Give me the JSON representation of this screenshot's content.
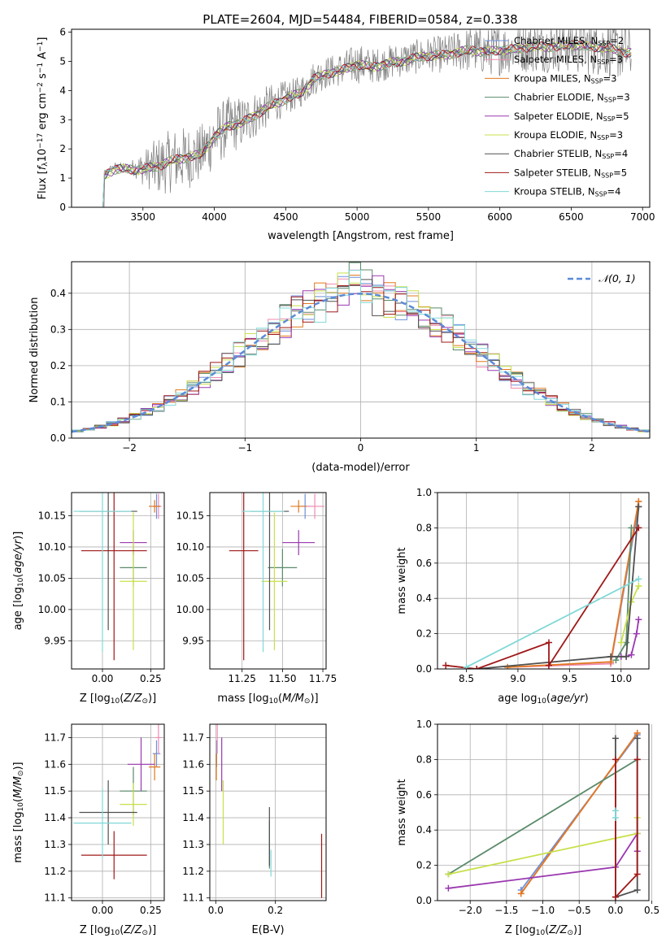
{
  "title": "PLATE=2604, MJD=54484, FIBERID=0584, z=0.338",
  "series_colors": {
    "Chabrier MILES": "#6d8fd8",
    "Salpeter MILES": "#f08ab0",
    "Kroupa MILES": "#e0781e",
    "Chabrier ELODIE": "#5a8a6a",
    "Salpeter ELODIE": "#9a38b0",
    "Kroupa ELODIE": "#c8e04a",
    "Chabrier STELIB": "#505050",
    "Salpeter STELIB": "#a01818",
    "Kroupa STELIB": "#80d8d8",
    "data": "#808080",
    "normal": "#5b8bd8"
  },
  "chart_data": [
    {
      "id": "spectrum",
      "type": "line",
      "title": "PLATE=2604, MJD=54484, FIBERID=0584, z=0.338",
      "xlabel": "wavelength [Angstrom, rest frame]",
      "ylabel": "Flux [f_λ 10^-17 erg cm^-2 s^-1 A^-1]",
      "ylabel_parts": [
        "Flux [",
        "f",
        "λ",
        "10",
        "−17",
        " erg cm",
        "−2",
        " s",
        "−1",
        " A",
        "−1",
        "]"
      ],
      "xlim": [
        3000,
        7050
      ],
      "ylim": [
        0,
        6.1
      ],
      "xticks": [
        3500,
        4000,
        4500,
        5000,
        5500,
        6000,
        6500,
        7000
      ],
      "yticks": [
        0,
        1,
        2,
        3,
        4,
        5,
        6
      ],
      "grid": false,
      "legend_position": "top-right",
      "data_envelope": {
        "x": [
          3200,
          3230,
          3300,
          3400,
          3500,
          3600,
          3700,
          3800,
          3900,
          4000,
          4100,
          4200,
          4300,
          4400,
          4500,
          4600,
          4700,
          4800,
          4900,
          5000,
          5100,
          5200,
          5300,
          5400,
          5500,
          5600,
          5700,
          5800,
          5900,
          6000,
          6100,
          6200,
          6300,
          6400,
          6500,
          6600,
          6700,
          6800,
          6900
        ],
        "y": [
          0,
          1.2,
          1.4,
          1.4,
          1.4,
          1.5,
          1.7,
          1.8,
          1.9,
          2.5,
          2.9,
          3.0,
          3.3,
          3.6,
          3.8,
          4.0,
          4.5,
          4.7,
          4.8,
          5.0,
          4.9,
          5.0,
          5.1,
          5.2,
          5.3,
          5.3,
          5.4,
          5.5,
          5.4,
          5.5,
          5.5,
          5.6,
          5.6,
          5.6,
          5.7,
          5.6,
          5.6,
          5.5,
          5.4
        ],
        "noise": [
          0,
          0.1,
          0.15,
          0.15,
          0.6,
          1.0,
          1.1,
          1.1,
          1.0,
          1.1,
          1.0,
          0.9,
          0.8,
          0.7,
          0.6,
          0.55,
          0.6,
          0.55,
          0.6,
          0.7,
          0.6,
          0.6,
          0.6,
          0.6,
          0.6,
          0.65,
          0.7,
          0.8,
          0.8,
          0.9,
          0.8,
          0.9,
          0.9,
          0.9,
          1.0,
          1.0,
          1.0,
          1.0,
          1.0
        ]
      },
      "legend": [
        {
          "key": "Chabrier MILES",
          "label": "Chabrier MILES, N",
          "sub": "SSP",
          "value": "=2"
        },
        {
          "key": "Salpeter MILES",
          "label": "Salpeter MILES, N",
          "sub": "SSP",
          "value": "=3"
        },
        {
          "key": "Kroupa MILES",
          "label": "Kroupa MILES, N",
          "sub": "SSP",
          "value": "=3"
        },
        {
          "key": "Chabrier ELODIE",
          "label": "Chabrier ELODIE, N",
          "sub": "SSP",
          "value": "=3"
        },
        {
          "key": "Salpeter ELODIE",
          "label": "Salpeter ELODIE, N",
          "sub": "SSP",
          "value": "=5"
        },
        {
          "key": "Kroupa ELODIE",
          "label": "Kroupa ELODIE, N",
          "sub": "SSP",
          "value": "=3"
        },
        {
          "key": "Chabrier STELIB",
          "label": "Chabrier STELIB, N",
          "sub": "SSP",
          "value": "=4"
        },
        {
          "key": "Salpeter STELIB",
          "label": "Salpeter STELIB, N",
          "sub": "SSP",
          "value": "=5"
        },
        {
          "key": "Kroupa STELIB",
          "label": "Kroupa STELIB, N",
          "sub": "SSP",
          "value": "=4"
        }
      ]
    },
    {
      "id": "residuals",
      "type": "line",
      "xlabel": "(data-model)/error",
      "ylabel": "Normed distribution",
      "xlim": [
        -2.5,
        2.5
      ],
      "ylim": [
        0,
        0.487
      ],
      "xticks": [
        -2,
        -1,
        0,
        1,
        2
      ],
      "yticks": [
        0.0,
        0.1,
        0.2,
        0.3,
        0.4
      ],
      "grid": true,
      "legend_position": "top-right",
      "legend_label": "𝒩(0, 1)",
      "normal": {
        "mean": 0,
        "sigma": 1
      }
    },
    {
      "id": "age-vs-Z",
      "type": "scatter",
      "xlabel": "Z [log10(Z/Z⊙)]",
      "ylabel": "age [log10(age/yr)]",
      "xlim": [
        -0.16,
        0.32
      ],
      "ylim": [
        9.905,
        10.187
      ],
      "xticks": [
        0.0,
        0.25
      ],
      "xticklabels": [
        "0.00",
        "0.25"
      ],
      "yticks": [
        9.95,
        10.0,
        10.05,
        10.1,
        10.15
      ],
      "yticklabels": [
        "9.95",
        "10.00",
        "10.05",
        "10.10",
        "10.15"
      ],
      "grid": true,
      "series": [
        {
          "key": "Chabrier MILES",
          "x": 0.28,
          "xerr": 0.02,
          "y": 10.165,
          "yerr": 0.02
        },
        {
          "key": "Salpeter MILES",
          "x": 0.29,
          "xerr": 0.015,
          "y": 10.165,
          "yerr": 0.02
        },
        {
          "key": "Kroupa MILES",
          "x": 0.27,
          "xerr": 0.03,
          "y": 10.165,
          "yerr": 0.01
        },
        {
          "key": "Chabrier ELODIE",
          "x": 0.16,
          "xerr": 0.07,
          "y": 10.067,
          "yerr": 0.03
        },
        {
          "key": "Salpeter ELODIE",
          "x": 0.16,
          "xerr": 0.07,
          "y": 10.107,
          "yerr": 0.02
        },
        {
          "key": "Kroupa ELODIE",
          "x": 0.16,
          "xerr": 0.07,
          "y": 10.045,
          "yerr": 0.11
        },
        {
          "key": "Chabrier STELIB",
          "x": 0.03,
          "xerr": 0.15,
          "y": 10.157,
          "yerr": 0.19
        },
        {
          "key": "Salpeter STELIB",
          "x": 0.06,
          "xerr": 0.17,
          "y": 10.094,
          "yerr": 0.175
        },
        {
          "key": "Kroupa STELIB",
          "x": 0.0,
          "xerr": 0.15,
          "y": 10.157,
          "yerr": 0.225
        }
      ]
    },
    {
      "id": "age-vs-mass",
      "type": "scatter",
      "xlabel": "mass [log10(M/M⊙)]",
      "ylabel": "",
      "xlim": [
        11.05,
        11.77
      ],
      "ylim": [
        9.905,
        10.187
      ],
      "xticks": [
        11.25,
        11.5,
        11.75
      ],
      "xticklabels": [
        "11.25",
        "11.50",
        "11.75"
      ],
      "yticks": [
        9.95,
        10.0,
        10.05,
        10.1,
        10.15
      ],
      "yticklabels": [
        "9.95",
        "10.00",
        "10.05",
        "10.10",
        "10.15"
      ],
      "grid": true,
      "series": [
        {
          "key": "Chabrier MILES",
          "x": 11.64,
          "xerr": 0.05,
          "y": 10.165,
          "yerr": 0.02
        },
        {
          "key": "Salpeter MILES",
          "x": 11.7,
          "xerr": 0.06,
          "y": 10.165,
          "yerr": 0.02
        },
        {
          "key": "Kroupa MILES",
          "x": 11.6,
          "xerr": 0.05,
          "y": 10.165,
          "yerr": 0.01
        },
        {
          "key": "Chabrier ELODIE",
          "x": 11.5,
          "xerr": 0.09,
          "y": 10.067,
          "yerr": 0.03
        },
        {
          "key": "Salpeter ELODIE",
          "x": 11.6,
          "xerr": 0.1,
          "y": 10.107,
          "yerr": 0.02
        },
        {
          "key": "Kroupa ELODIE",
          "x": 11.45,
          "xerr": 0.08,
          "y": 10.045,
          "yerr": 0.11
        },
        {
          "key": "Chabrier STELIB",
          "x": 11.42,
          "xerr": 0.12,
          "y": 10.157,
          "yerr": 0.19
        },
        {
          "key": "Salpeter STELIB",
          "x": 11.26,
          "xerr": 0.09,
          "y": 10.094,
          "yerr": 0.175
        },
        {
          "key": "Kroupa STELIB",
          "x": 11.38,
          "xerr": 0.13,
          "y": 10.157,
          "yerr": 0.225
        }
      ]
    },
    {
      "id": "mass-weight-vs-age",
      "type": "line",
      "xlabel": "age log10(age/yr)",
      "ylabel": "mass weight",
      "xlim": [
        8.22,
        10.27
      ],
      "ylim": [
        0,
        1
      ],
      "xticks": [
        8.5,
        9.0,
        9.5,
        10.0
      ],
      "xticklabels": [
        "8.5",
        "9.0",
        "9.5",
        "10.0"
      ],
      "yticks": [
        0,
        0.2,
        0.4,
        0.6,
        0.8,
        1.0
      ],
      "yticklabels": [
        "0.0",
        "0.2",
        "0.4",
        "0.6",
        "0.8",
        "1.0"
      ],
      "grid": true,
      "series": [
        {
          "key": "Chabrier MILES",
          "x": [
            9.9,
            10.17
          ],
          "y": [
            0.03,
            0.92
          ]
        },
        {
          "key": "Salpeter MILES",
          "x": [
            8.9,
            9.9,
            10.17
          ],
          "y": [
            0.01,
            0.03,
            0.95
          ]
        },
        {
          "key": "Kroupa MILES",
          "x": [
            8.9,
            9.9,
            10.17
          ],
          "y": [
            0.01,
            0.04,
            0.95
          ]
        },
        {
          "key": "Chabrier ELODIE",
          "x": [
            9.95,
            10.05,
            10.1
          ],
          "y": [
            0.05,
            0.15,
            0.8
          ]
        },
        {
          "key": "Salpeter ELODIE",
          "x": [
            10.0,
            10.05,
            10.1,
            10.15,
            10.17
          ],
          "y": [
            0.07,
            0.07,
            0.08,
            0.2,
            0.28
          ]
        },
        {
          "key": "Kroupa ELODIE",
          "x": [
            10.0,
            10.1,
            10.17
          ],
          "y": [
            0.15,
            0.38,
            0.47
          ]
        },
        {
          "key": "Chabrier STELIB",
          "x": [
            8.6,
            9.9,
            10.05,
            10.17
          ],
          "y": [
            0.0,
            0.07,
            0.07,
            0.92
          ]
        },
        {
          "key": "Salpeter STELIB",
          "x": [
            8.3,
            8.6,
            9.3,
            9.3,
            10.17
          ],
          "y": [
            0.02,
            0.0,
            0.15,
            0.02,
            0.8
          ]
        },
        {
          "key": "Kroupa STELIB",
          "x": [
            8.5,
            10.17
          ],
          "y": [
            0.01,
            0.51
          ]
        }
      ]
    },
    {
      "id": "mass-vs-Z",
      "type": "scatter",
      "xlabel": "Z [log10(Z/Z⊙)]",
      "ylabel": "mass [log10(M/M⊙)]",
      "xlim": [
        -0.16,
        0.32
      ],
      "ylim": [
        11.09,
        11.75
      ],
      "xticks": [
        0.0,
        0.25
      ],
      "xticklabels": [
        "0.00",
        "0.25"
      ],
      "yticks": [
        11.1,
        11.2,
        11.3,
        11.4,
        11.5,
        11.6,
        11.7
      ],
      "yticklabels": [
        "11.1",
        "11.2",
        "11.3",
        "11.4",
        "11.5",
        "11.6",
        "11.7"
      ],
      "grid": true,
      "series": [
        {
          "key": "Chabrier MILES",
          "x": 0.28,
          "xerr": 0.02,
          "y": 11.64,
          "yerr": 0.05
        },
        {
          "key": "Salpeter MILES",
          "x": 0.29,
          "xerr": 0.015,
          "y": 11.7,
          "yerr": 0.06
        },
        {
          "key": "Kroupa MILES",
          "x": 0.27,
          "xerr": 0.03,
          "y": 11.59,
          "yerr": 0.05
        },
        {
          "key": "Chabrier ELODIE",
          "x": 0.16,
          "xerr": 0.07,
          "y": 11.5,
          "yerr": 0.09
        },
        {
          "key": "Salpeter ELODIE",
          "x": 0.2,
          "xerr": 0.07,
          "y": 11.6,
          "yerr": 0.1
        },
        {
          "key": "Kroupa ELODIE",
          "x": 0.16,
          "xerr": 0.07,
          "y": 11.45,
          "yerr": 0.08
        },
        {
          "key": "Chabrier STELIB",
          "x": 0.03,
          "xerr": 0.15,
          "y": 11.42,
          "yerr": 0.12
        },
        {
          "key": "Salpeter STELIB",
          "x": 0.06,
          "xerr": 0.17,
          "y": 11.26,
          "yerr": 0.09
        },
        {
          "key": "Kroupa STELIB",
          "x": 0.0,
          "xerr": 0.15,
          "y": 11.38,
          "yerr": 0.13
        }
      ]
    },
    {
      "id": "mass-vs-EBV",
      "type": "scatter",
      "xlabel": "E(B-V)",
      "ylabel": "",
      "xlim": [
        -0.02,
        0.37
      ],
      "ylim": [
        11.09,
        11.75
      ],
      "xticks": [
        0.0,
        0.2
      ],
      "xticklabels": [
        "0.0",
        "0.2"
      ],
      "yticks": [
        11.1,
        11.2,
        11.3,
        11.4,
        11.5,
        11.6,
        11.7
      ],
      "yticklabels": [
        "11.1",
        "11.2",
        "11.3",
        "11.4",
        "11.5",
        "11.6",
        "11.7"
      ],
      "grid": true,
      "series": [
        {
          "key": "Chabrier MILES",
          "x": 0.003,
          "xerr": 0.0,
          "y": 11.64,
          "yerr": 0.05
        },
        {
          "key": "Salpeter MILES",
          "x": 0.005,
          "xerr": 0.0,
          "y": 11.7,
          "yerr": 0.06
        },
        {
          "key": "Kroupa MILES",
          "x": 0.002,
          "xerr": 0.0,
          "y": 11.59,
          "yerr": 0.05
        },
        {
          "key": "Chabrier ELODIE",
          "x": 0.18,
          "xerr": 0.0,
          "y": 11.3,
          "yerr": 0.09
        },
        {
          "key": "Salpeter ELODIE",
          "x": 0.02,
          "xerr": 0.0,
          "y": 11.6,
          "yerr": 0.1
        },
        {
          "key": "Kroupa ELODIE",
          "x": 0.025,
          "xerr": 0.0,
          "y": 11.42,
          "yerr": 0.12
        },
        {
          "key": "Chabrier STELIB",
          "x": 0.18,
          "xerr": 0.0,
          "y": 11.33,
          "yerr": 0.11
        },
        {
          "key": "Salpeter STELIB",
          "x": 0.355,
          "xerr": 0.0,
          "y": 11.22,
          "yerr": 0.12
        },
        {
          "key": "Kroupa STELIB",
          "x": 0.185,
          "xerr": 0.0,
          "y": 11.23,
          "yerr": 0.05
        }
      ]
    },
    {
      "id": "mass-weight-vs-Z",
      "type": "line",
      "xlabel": "Z [log10(Z/Z⊙)]",
      "ylabel": "mass weight",
      "xlim": [
        -2.45,
        0.46
      ],
      "ylim": [
        0,
        1
      ],
      "xticks": [
        -2.0,
        -1.5,
        -1.0,
        -0.5,
        0.0,
        0.5
      ],
      "xticklabels": [
        "−2.0",
        "−1.5",
        "−1.0",
        "−0.5",
        "0.0",
        "0.5"
      ],
      "yticks": [
        0,
        0.2,
        0.4,
        0.6,
        0.8,
        1.0
      ],
      "yticklabels": [
        "0.0",
        "0.2",
        "0.4",
        "0.6",
        "0.8",
        "1.0"
      ],
      "grid": true,
      "series": [
        {
          "key": "Chabrier MILES",
          "x": [
            -1.3,
            0.3
          ],
          "y": [
            0.06,
            0.94
          ]
        },
        {
          "key": "Salpeter MILES",
          "x": [
            -1.3,
            0.3
          ],
          "y": [
            0.04,
            0.95
          ]
        },
        {
          "key": "Kroupa MILES",
          "x": [
            -1.3,
            0.3
          ],
          "y": [
            0.04,
            0.95
          ]
        },
        {
          "key": "Chabrier ELODIE",
          "x": [
            -2.3,
            0.3
          ],
          "y": [
            0.15,
            0.8
          ]
        },
        {
          "key": "Salpeter ELODIE",
          "x": [
            -2.3,
            0.0,
            0.3,
            0.3
          ],
          "y": [
            0.07,
            0.19,
            0.38,
            0.28
          ]
        },
        {
          "key": "Kroupa ELODIE",
          "x": [
            -2.3,
            0.3,
            0.3
          ],
          "y": [
            0.15,
            0.38,
            0.47
          ]
        },
        {
          "key": "Chabrier STELIB",
          "x": [
            0.0,
            0.0,
            0.3,
            0.3
          ],
          "y": [
            0.92,
            0.02,
            0.06,
            0.92
          ]
        },
        {
          "key": "Salpeter STELIB",
          "x": [
            0.0,
            0.0,
            0.3,
            0.3
          ],
          "y": [
            0.8,
            0.02,
            0.15,
            0.8
          ]
        },
        {
          "key": "Kroupa STELIB",
          "x": [
            0.0,
            0.0
          ],
          "y": [
            0.51,
            0.47
          ]
        }
      ]
    }
  ]
}
